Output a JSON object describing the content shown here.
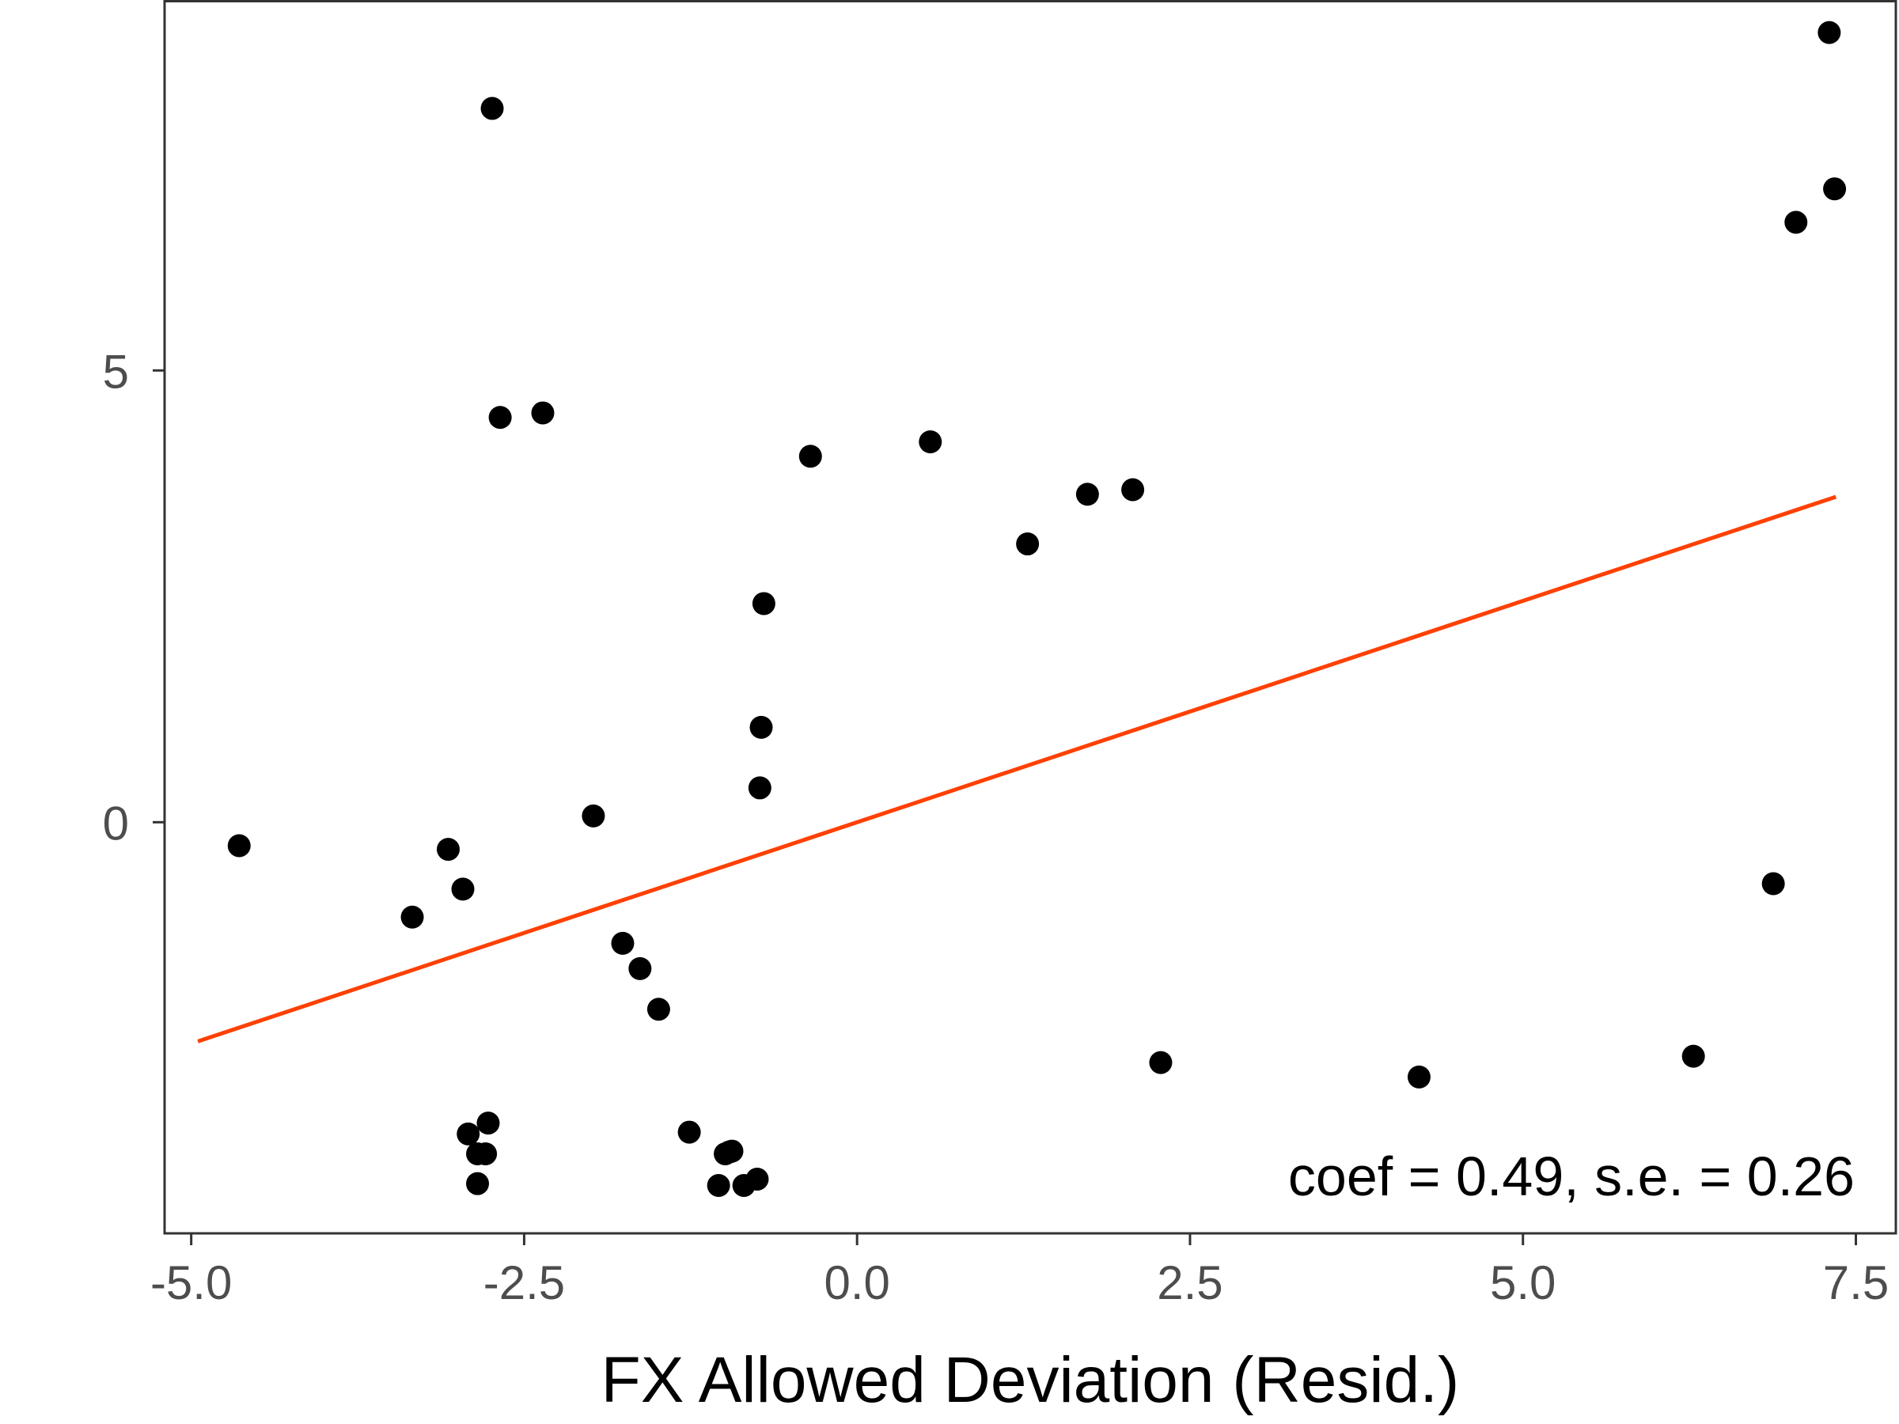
{
  "chart_data": {
    "type": "scatter",
    "title": "",
    "xlabel": "FX Allowed Deviation (Resid.)",
    "ylabel": "",
    "xlim": [
      -5.2,
      7.8
    ],
    "ylim": [
      -4.55,
      9.1
    ],
    "x_ticks": [
      -5.0,
      -2.5,
      0.0,
      2.5,
      5.0,
      7.5
    ],
    "x_tick_labels": [
      "-5.0",
      "-2.5",
      "0.0",
      "2.5",
      "5.0",
      "7.5"
    ],
    "y_ticks": [
      0,
      5
    ],
    "y_tick_labels": [
      "0",
      "5"
    ],
    "grid": false,
    "series": [
      {
        "type": "scatter",
        "color": "#000000",
        "points": [
          {
            "x": -4.64,
            "y": -0.26
          },
          {
            "x": -3.34,
            "y": -1.05
          },
          {
            "x": -3.07,
            "y": -0.3
          },
          {
            "x": -2.96,
            "y": -0.74
          },
          {
            "x": -2.92,
            "y": -3.45
          },
          {
            "x": -2.85,
            "y": -3.67
          },
          {
            "x": -2.85,
            "y": -4.0
          },
          {
            "x": -2.79,
            "y": -3.67
          },
          {
            "x": -2.77,
            "y": -3.33
          },
          {
            "x": -2.74,
            "y": 7.9
          },
          {
            "x": -2.68,
            "y": 4.48
          },
          {
            "x": -2.36,
            "y": 4.53
          },
          {
            "x": -1.98,
            "y": 0.07
          },
          {
            "x": -1.76,
            "y": -1.34
          },
          {
            "x": -1.63,
            "y": -1.62
          },
          {
            "x": -1.49,
            "y": -2.07
          },
          {
            "x": -1.26,
            "y": -3.43
          },
          {
            "x": -1.04,
            "y": -4.02
          },
          {
            "x": -0.99,
            "y": -3.67
          },
          {
            "x": -0.96,
            "y": -3.65
          },
          {
            "x": -0.94,
            "y": -3.64
          },
          {
            "x": -0.85,
            "y": -4.02
          },
          {
            "x": -0.75,
            "y": -3.95
          },
          {
            "x": -0.73,
            "y": 0.38
          },
          {
            "x": -0.72,
            "y": 1.05
          },
          {
            "x": -0.7,
            "y": 2.42
          },
          {
            "x": -0.35,
            "y": 4.05
          },
          {
            "x": 0.55,
            "y": 4.21
          },
          {
            "x": 1.28,
            "y": 3.08
          },
          {
            "x": 1.73,
            "y": 3.63
          },
          {
            "x": 2.07,
            "y": 3.68
          },
          {
            "x": 2.28,
            "y": -2.66
          },
          {
            "x": 4.22,
            "y": -2.82
          },
          {
            "x": 6.28,
            "y": -2.59
          },
          {
            "x": 6.88,
            "y": -0.68
          },
          {
            "x": 7.05,
            "y": 6.64
          },
          {
            "x": 7.3,
            "y": 8.74
          },
          {
            "x": 7.34,
            "y": 7.01
          }
        ]
      },
      {
        "type": "line",
        "name": "fit",
        "color": "#ff4000",
        "x": [
          -4.95,
          7.35
        ],
        "y": [
          -2.4255,
          3.6015
        ]
      }
    ],
    "annotations": [
      {
        "text": "coef = 0.49, s.e. = 0.26",
        "position": "bottom-right"
      }
    ]
  }
}
